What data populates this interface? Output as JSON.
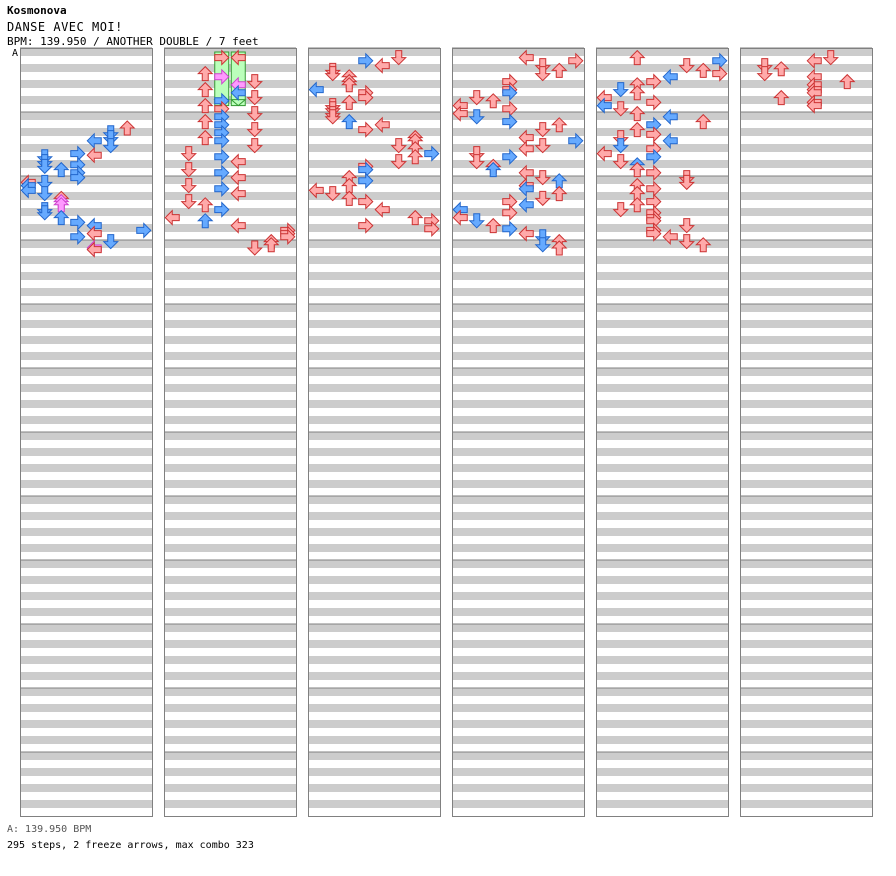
{
  "header": {
    "artist": "Kosmonova",
    "title": "DANSE AVEC MOI!",
    "bpm_line": "BPM: 139.950 / ANOTHER DOUBLE / 7 feet",
    "section_marker": "A"
  },
  "footer": {
    "bpm_note": "A: 139.950 BPM",
    "stats": "295 steps, 2 freeze arrows, max combo 323"
  },
  "colors": {
    "stripe": "#cccccc",
    "border": "#808080",
    "left_side_note": "#66aaff",
    "right_side_note": "#ff7777",
    "freeze_body": "#bbffbb",
    "mine_pink": "#ff99ff"
  },
  "chart_data": {
    "type": "table",
    "columns": 6,
    "measures_per_column": 12,
    "lanes": 8,
    "freezes": [
      {
        "column": 1,
        "measure": 0,
        "start": 0,
        "end": 3.6,
        "lane": 3
      },
      {
        "column": 1,
        "measure": 0,
        "start": 0,
        "end": 3.6,
        "lane": 4
      }
    ],
    "notes": [
      [
        0,
        4.5,
        6,
        "r"
      ],
      [
        0,
        4.8,
        5,
        "b"
      ],
      [
        0,
        5.1,
        5,
        "b"
      ],
      [
        0,
        5.3,
        4,
        "b"
      ],
      [
        0,
        5.6,
        5,
        "b"
      ],
      [
        0,
        6.1,
        3,
        "b"
      ],
      [
        0,
        6.2,
        4,
        "r"
      ],
      [
        0,
        6.3,
        1,
        "b"
      ],
      [
        0,
        6.6,
        1,
        "b"
      ],
      [
        0,
        6.8,
        3,
        "b"
      ],
      [
        0,
        6.9,
        1,
        "b"
      ],
      [
        0,
        7.1,
        2,
        "b"
      ],
      [
        0,
        7.3,
        3,
        "b"
      ],
      [
        0,
        7.6,
        3,
        "b"
      ],
      [
        0,
        7.9,
        0,
        "r"
      ],
      [
        0,
        7.9,
        1,
        "b"
      ],
      [
        0,
        8.1,
        0,
        "b"
      ],
      [
        0,
        8.4,
        0,
        "b"
      ],
      [
        0,
        8.6,
        1,
        "b"
      ],
      [
        0,
        8.9,
        2,
        "r"
      ],
      [
        0,
        9.1,
        2,
        "m"
      ],
      [
        0,
        9.3,
        2,
        "m"
      ],
      [
        0,
        9.6,
        1,
        "b"
      ],
      [
        0,
        9.8,
        1,
        "b"
      ],
      [
        0,
        10.1,
        2,
        "b"
      ],
      [
        0,
        10.4,
        3,
        "b"
      ],
      [
        0,
        10.6,
        4,
        "b"
      ],
      [
        0,
        10.9,
        7,
        "b"
      ],
      [
        0,
        11.1,
        4,
        "r"
      ],
      [
        0,
        11.3,
        3,
        "b"
      ],
      [
        0,
        11.6,
        5,
        "b"
      ],
      [
        0,
        12.0,
        4,
        "m"
      ],
      [
        0,
        12.1,
        4,
        "r"
      ],
      [
        1,
        0.1,
        3,
        "r"
      ],
      [
        1,
        0.1,
        4,
        "r"
      ],
      [
        1,
        1.1,
        2,
        "r"
      ],
      [
        1,
        1.3,
        3,
        "m"
      ],
      [
        1,
        1.6,
        5,
        "r"
      ],
      [
        1,
        1.8,
        4,
        "m"
      ],
      [
        1,
        2.1,
        2,
        "r"
      ],
      [
        1,
        2.3,
        4,
        "b"
      ],
      [
        1,
        2.6,
        5,
        "r"
      ],
      [
        1,
        2.8,
        3,
        "b"
      ],
      [
        1,
        3.1,
        2,
        "r"
      ],
      [
        1,
        3.3,
        3,
        "r"
      ],
      [
        1,
        3.6,
        5,
        "r"
      ],
      [
        1,
        3.8,
        3,
        "b"
      ],
      [
        1,
        4.1,
        2,
        "r"
      ],
      [
        1,
        4.3,
        3,
        "b"
      ],
      [
        1,
        4.6,
        5,
        "r"
      ],
      [
        1,
        4.8,
        3,
        "b"
      ],
      [
        1,
        5.1,
        2,
        "r"
      ],
      [
        1,
        5.3,
        3,
        "b"
      ],
      [
        1,
        5.6,
        5,
        "r"
      ],
      [
        1,
        6.1,
        1,
        "r"
      ],
      [
        1,
        6.3,
        3,
        "b"
      ],
      [
        1,
        6.6,
        4,
        "r"
      ],
      [
        1,
        7.1,
        1,
        "r"
      ],
      [
        1,
        7.3,
        3,
        "b"
      ],
      [
        1,
        7.6,
        4,
        "r"
      ],
      [
        1,
        8.1,
        1,
        "r"
      ],
      [
        1,
        8.3,
        3,
        "b"
      ],
      [
        1,
        8.6,
        4,
        "r"
      ],
      [
        1,
        9.1,
        1,
        "r"
      ],
      [
        1,
        9.3,
        2,
        "r"
      ],
      [
        1,
        9.6,
        3,
        "b"
      ],
      [
        1,
        10.1,
        0,
        "r"
      ],
      [
        1,
        10.3,
        2,
        "b"
      ],
      [
        1,
        10.6,
        4,
        "r"
      ],
      [
        1,
        10.9,
        7,
        "r"
      ],
      [
        1,
        11.1,
        7,
        "r"
      ],
      [
        1,
        11.3,
        7,
        "r"
      ],
      [
        1,
        11.6,
        6,
        "r"
      ],
      [
        1,
        11.8,
        6,
        "r"
      ],
      [
        1,
        12.0,
        5,
        "r"
      ],
      [
        2,
        0.1,
        5,
        "r"
      ],
      [
        2,
        0.3,
        3,
        "b"
      ],
      [
        2,
        0.6,
        4,
        "r"
      ],
      [
        2,
        0.9,
        1,
        "r"
      ],
      [
        2,
        1.1,
        1,
        "r"
      ],
      [
        2,
        1.3,
        2,
        "r"
      ],
      [
        2,
        1.6,
        2,
        "r"
      ],
      [
        2,
        1.8,
        2,
        "r"
      ],
      [
        2,
        2.1,
        0,
        "b"
      ],
      [
        2,
        2.3,
        3,
        "r"
      ],
      [
        2,
        2.6,
        3,
        "r"
      ],
      [
        2,
        2.9,
        2,
        "r"
      ],
      [
        2,
        3.1,
        1,
        "r"
      ],
      [
        2,
        3.3,
        1,
        "r"
      ],
      [
        2,
        3.6,
        1,
        "r"
      ],
      [
        2,
        3.8,
        1,
        "r"
      ],
      [
        2,
        4.1,
        2,
        "b"
      ],
      [
        2,
        4.3,
        4,
        "r"
      ],
      [
        2,
        4.6,
        3,
        "r"
      ],
      [
        2,
        5.1,
        6,
        "r"
      ],
      [
        2,
        5.3,
        6,
        "r"
      ],
      [
        2,
        5.6,
        5,
        "r"
      ],
      [
        2,
        5.8,
        6,
        "r"
      ],
      [
        2,
        6.1,
        7,
        "b"
      ],
      [
        2,
        6.3,
        6,
        "r"
      ],
      [
        2,
        6.6,
        5,
        "r"
      ],
      [
        2,
        6.9,
        3,
        "r"
      ],
      [
        2,
        7.1,
        3,
        "b"
      ],
      [
        2,
        7.6,
        2,
        "r"
      ],
      [
        2,
        7.8,
        3,
        "b"
      ],
      [
        2,
        8.1,
        2,
        "r"
      ],
      [
        2,
        8.4,
        0,
        "r"
      ],
      [
        2,
        8.6,
        1,
        "r"
      ],
      [
        2,
        8.9,
        2,
        "r"
      ],
      [
        2,
        9.1,
        3,
        "r"
      ],
      [
        2,
        9.6,
        4,
        "r"
      ],
      [
        2,
        10.1,
        6,
        "r"
      ],
      [
        2,
        10.3,
        7,
        "r"
      ],
      [
        2,
        10.6,
        3,
        "r"
      ],
      [
        2,
        10.8,
        7,
        "r"
      ],
      [
        3,
        0.1,
        4,
        "r"
      ],
      [
        3,
        0.3,
        7,
        "r"
      ],
      [
        3,
        0.6,
        5,
        "r"
      ],
      [
        3,
        0.9,
        6,
        "r"
      ],
      [
        3,
        1.1,
        5,
        "r"
      ],
      [
        3,
        1.6,
        3,
        "r"
      ],
      [
        3,
        2.1,
        3,
        "r"
      ],
      [
        3,
        2.3,
        3,
        "b"
      ],
      [
        3,
        2.6,
        1,
        "r"
      ],
      [
        3,
        2.8,
        2,
        "r"
      ],
      [
        3,
        3.1,
        0,
        "r"
      ],
      [
        3,
        3.3,
        3,
        "r"
      ],
      [
        3,
        3.6,
        0,
        "r"
      ],
      [
        3,
        3.8,
        1,
        "b"
      ],
      [
        3,
        4.1,
        3,
        "b"
      ],
      [
        3,
        4.3,
        6,
        "r"
      ],
      [
        3,
        4.6,
        5,
        "r"
      ],
      [
        3,
        5.1,
        4,
        "r"
      ],
      [
        3,
        5.3,
        7,
        "b"
      ],
      [
        3,
        5.6,
        5,
        "r"
      ],
      [
        3,
        5.8,
        4,
        "r"
      ],
      [
        3,
        6.1,
        1,
        "r"
      ],
      [
        3,
        6.3,
        3,
        "b"
      ],
      [
        3,
        6.6,
        1,
        "r"
      ],
      [
        3,
        6.9,
        2,
        "r"
      ],
      [
        3,
        7.1,
        2,
        "b"
      ],
      [
        3,
        7.3,
        4,
        "r"
      ],
      [
        3,
        7.6,
        5,
        "r"
      ],
      [
        3,
        7.8,
        6,
        "b"
      ],
      [
        3,
        8.1,
        4,
        "r"
      ],
      [
        3,
        8.3,
        4,
        "b"
      ],
      [
        3,
        8.6,
        6,
        "r"
      ],
      [
        3,
        8.9,
        5,
        "r"
      ],
      [
        3,
        9.1,
        3,
        "r"
      ],
      [
        3,
        9.3,
        4,
        "b"
      ],
      [
        3,
        9.6,
        0,
        "b"
      ],
      [
        3,
        9.8,
        3,
        "r"
      ],
      [
        3,
        10.1,
        0,
        "r"
      ],
      [
        3,
        10.3,
        1,
        "b"
      ],
      [
        3,
        10.6,
        2,
        "r"
      ],
      [
        3,
        10.8,
        3,
        "b"
      ],
      [
        3,
        11.1,
        4,
        "r"
      ],
      [
        3,
        11.3,
        5,
        "b"
      ],
      [
        3,
        11.6,
        6,
        "r"
      ],
      [
        3,
        11.8,
        5,
        "b"
      ],
      [
        3,
        12.0,
        6,
        "r"
      ],
      [
        4,
        0.1,
        2,
        "r"
      ],
      [
        4,
        0.3,
        7,
        "b"
      ],
      [
        4,
        0.6,
        5,
        "r"
      ],
      [
        4,
        0.9,
        6,
        "r"
      ],
      [
        4,
        1.1,
        7,
        "r"
      ],
      [
        4,
        1.3,
        4,
        "b"
      ],
      [
        4,
        1.6,
        3,
        "r"
      ],
      [
        4,
        1.8,
        2,
        "r"
      ],
      [
        4,
        2.1,
        1,
        "b"
      ],
      [
        4,
        2.3,
        2,
        "r"
      ],
      [
        4,
        2.6,
        0,
        "r"
      ],
      [
        4,
        2.9,
        3,
        "r"
      ],
      [
        4,
        3.1,
        0,
        "b"
      ],
      [
        4,
        3.3,
        1,
        "r"
      ],
      [
        4,
        3.6,
        2,
        "r"
      ],
      [
        4,
        3.8,
        4,
        "b"
      ],
      [
        4,
        4.1,
        6,
        "r"
      ],
      [
        4,
        4.3,
        3,
        "b"
      ],
      [
        4,
        4.6,
        2,
        "r"
      ],
      [
        4,
        4.9,
        3,
        "r"
      ],
      [
        4,
        5.1,
        1,
        "r"
      ],
      [
        4,
        5.3,
        4,
        "b"
      ],
      [
        4,
        5.6,
        1,
        "b"
      ],
      [
        4,
        5.8,
        3,
        "r"
      ],
      [
        4,
        6.1,
        0,
        "r"
      ],
      [
        4,
        6.3,
        3,
        "b"
      ],
      [
        4,
        6.6,
        1,
        "r"
      ],
      [
        4,
        6.8,
        2,
        "b"
      ],
      [
        4,
        7.1,
        2,
        "r"
      ],
      [
        4,
        7.3,
        3,
        "r"
      ],
      [
        4,
        7.6,
        5,
        "r"
      ],
      [
        4,
        7.9,
        5,
        "r"
      ],
      [
        4,
        8.1,
        2,
        "r"
      ],
      [
        4,
        8.3,
        3,
        "r"
      ],
      [
        4,
        8.6,
        2,
        "r"
      ],
      [
        4,
        9.1,
        3,
        "r"
      ],
      [
        4,
        9.3,
        2,
        "r"
      ],
      [
        4,
        9.6,
        1,
        "r"
      ],
      [
        4,
        9.8,
        3,
        "r"
      ],
      [
        4,
        10.1,
        3,
        "r"
      ],
      [
        4,
        10.3,
        3,
        "r"
      ],
      [
        4,
        10.6,
        5,
        "r"
      ],
      [
        4,
        10.9,
        3,
        "r"
      ],
      [
        4,
        11.1,
        3,
        "r"
      ],
      [
        4,
        11.3,
        4,
        "r"
      ],
      [
        4,
        11.6,
        5,
        "r"
      ],
      [
        4,
        11.8,
        6,
        "r"
      ],
      [
        5,
        0.1,
        5,
        "r"
      ],
      [
        5,
        0.3,
        4,
        "r"
      ],
      [
        5,
        0.6,
        1,
        "r"
      ],
      [
        5,
        0.8,
        2,
        "r"
      ],
      [
        5,
        1.1,
        1,
        "r"
      ],
      [
        5,
        1.3,
        4,
        "r"
      ],
      [
        5,
        1.6,
        6,
        "r"
      ],
      [
        5,
        1.8,
        4,
        "r"
      ],
      [
        5,
        2.1,
        4,
        "r"
      ],
      [
        5,
        2.3,
        4,
        "r"
      ],
      [
        5,
        2.6,
        2,
        "r"
      ],
      [
        5,
        2.9,
        4,
        "r"
      ],
      [
        5,
        3.1,
        4,
        "r"
      ]
    ]
  }
}
